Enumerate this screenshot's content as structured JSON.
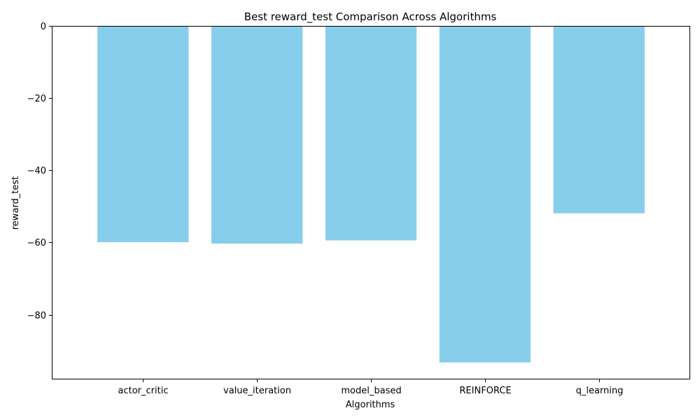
{
  "chart_data": {
    "type": "bar",
    "title": "Best reward_test Comparison Across Algorithms",
    "xlabel": "Algorithms",
    "ylabel": "reward_test",
    "categories": [
      "actor_critic",
      "value_iteration",
      "model_based",
      "REINFORCE",
      "q_learning"
    ],
    "values": [
      -59.9,
      -60.3,
      -59.4,
      -93.2,
      -51.9
    ],
    "ylim": [
      -97.9,
      0
    ],
    "yticks": [
      0,
      -20,
      -40,
      -60,
      -80
    ],
    "ytick_labels": [
      "0",
      "−20",
      "−40",
      "−60",
      "−80"
    ],
    "bar_color": "#87ceeb",
    "grid": false,
    "legend": "none"
  }
}
